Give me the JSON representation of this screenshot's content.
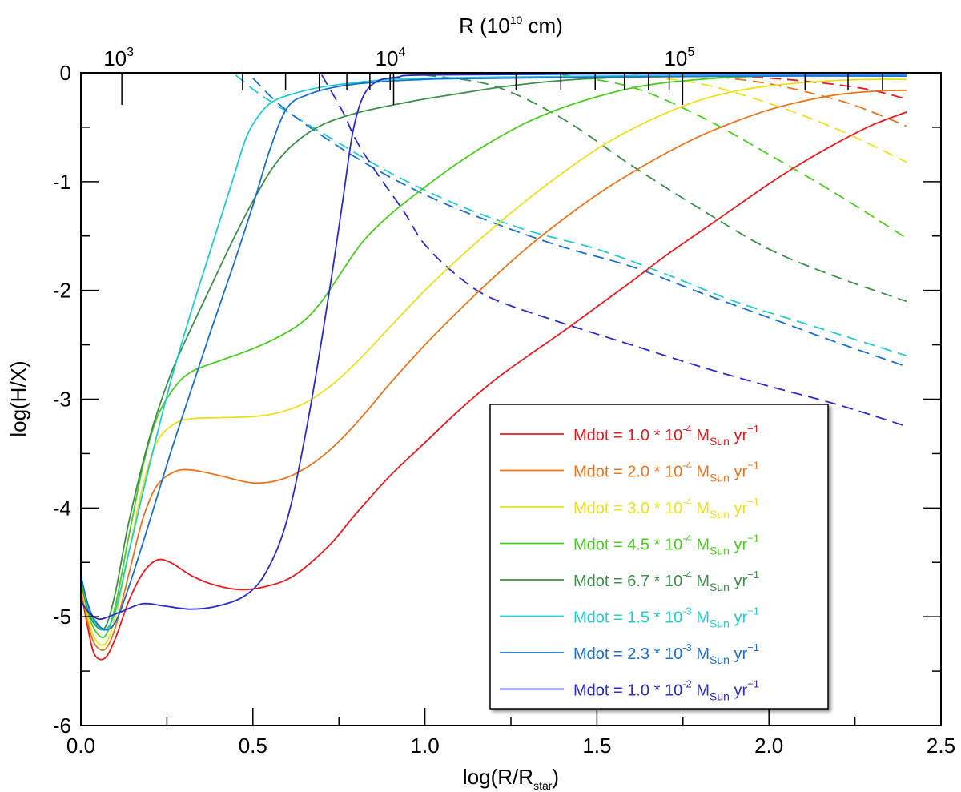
{
  "chart_data": {
    "type": "line",
    "title": "",
    "xlabel": "log(R/R",
    "xlabel_sub": "star",
    "xlabel_close": ")",
    "ylabel": "log(H/X)",
    "top_axis_label": "R (10",
    "top_axis_label_sup": "10",
    "top_axis_label_end": " cm)",
    "xlim": [
      0.0,
      2.5
    ],
    "ylim": [
      -6,
      0
    ],
    "x_ticks": [
      0.0,
      0.5,
      1.0,
      1.5,
      2.0,
      2.5
    ],
    "x_tick_labels": [
      "0.0",
      "0.5",
      "1.0",
      "1.5",
      "2.0",
      "2.5"
    ],
    "y_ticks": [
      0,
      -1,
      -2,
      -3,
      -4,
      -5,
      -6
    ],
    "y_tick_labels": [
      "0",
      "-1",
      "-2",
      "-3",
      "-4",
      "-5",
      "-6"
    ],
    "top_ticks": [
      {
        "base": "10",
        "exp": "3",
        "x": 0.119
      },
      {
        "base": "10",
        "exp": "4",
        "x": 0.909
      },
      {
        "base": "10",
        "exp": "5",
        "x": 1.749
      }
    ],
    "top_minor_x": [
      0.47,
      0.595,
      0.693,
      0.773,
      0.84,
      0.899,
      1.265,
      1.395,
      1.495,
      1.58,
      1.65,
      1.71,
      2.105,
      2.23,
      2.33
    ],
    "legend_position": "bottom-right",
    "series": [
      {
        "name": "Mdot = 1.0 * 10",
        "exp": "-4",
        "unit": "Sun",
        "color": "#e8191f",
        "solid": [
          [
            0.0,
            -4.75
          ],
          [
            0.02,
            -5.1
          ],
          [
            0.04,
            -5.35
          ],
          [
            0.07,
            -5.38
          ],
          [
            0.1,
            -5.2
          ],
          [
            0.14,
            -4.85
          ],
          [
            0.18,
            -4.6
          ],
          [
            0.22,
            -4.48
          ],
          [
            0.26,
            -4.5
          ],
          [
            0.32,
            -4.62
          ],
          [
            0.38,
            -4.7
          ],
          [
            0.46,
            -4.75
          ],
          [
            0.54,
            -4.72
          ],
          [
            0.62,
            -4.62
          ],
          [
            0.72,
            -4.35
          ],
          [
            0.8,
            -4.05
          ],
          [
            0.9,
            -3.7
          ],
          [
            1.0,
            -3.4
          ],
          [
            1.1,
            -3.1
          ],
          [
            1.2,
            -2.83
          ],
          [
            1.3,
            -2.6
          ],
          [
            1.4,
            -2.38
          ],
          [
            1.5,
            -2.15
          ],
          [
            1.6,
            -1.92
          ],
          [
            1.7,
            -1.68
          ],
          [
            1.8,
            -1.46
          ],
          [
            1.9,
            -1.24
          ],
          [
            2.0,
            -1.02
          ],
          [
            2.1,
            -0.82
          ],
          [
            2.2,
            -0.64
          ],
          [
            2.3,
            -0.48
          ],
          [
            2.4,
            -0.36
          ]
        ],
        "dashed": [
          [
            1.9,
            -0.03
          ],
          [
            2.05,
            -0.06
          ],
          [
            2.2,
            -0.11
          ],
          [
            2.3,
            -0.16
          ],
          [
            2.4,
            -0.24
          ]
        ]
      },
      {
        "name": "Mdot = 2.0 * 10",
        "exp": "-4",
        "unit": "Sun",
        "color": "#e8751c",
        "solid": [
          [
            0.0,
            -4.72
          ],
          [
            0.02,
            -5.05
          ],
          [
            0.04,
            -5.25
          ],
          [
            0.07,
            -5.3
          ],
          [
            0.1,
            -5.1
          ],
          [
            0.14,
            -4.6
          ],
          [
            0.18,
            -4.1
          ],
          [
            0.22,
            -3.8
          ],
          [
            0.27,
            -3.67
          ],
          [
            0.32,
            -3.65
          ],
          [
            0.4,
            -3.7
          ],
          [
            0.5,
            -3.77
          ],
          [
            0.58,
            -3.74
          ],
          [
            0.66,
            -3.62
          ],
          [
            0.74,
            -3.42
          ],
          [
            0.82,
            -3.15
          ],
          [
            0.9,
            -2.85
          ],
          [
            1.0,
            -2.5
          ],
          [
            1.1,
            -2.18
          ],
          [
            1.2,
            -1.88
          ],
          [
            1.3,
            -1.6
          ],
          [
            1.4,
            -1.35
          ],
          [
            1.5,
            -1.12
          ],
          [
            1.6,
            -0.92
          ],
          [
            1.7,
            -0.74
          ],
          [
            1.8,
            -0.58
          ],
          [
            1.9,
            -0.45
          ],
          [
            2.0,
            -0.34
          ],
          [
            2.1,
            -0.26
          ],
          [
            2.2,
            -0.2
          ],
          [
            2.3,
            -0.17
          ],
          [
            2.4,
            -0.16
          ]
        ],
        "dashed": [
          [
            1.8,
            -0.02
          ],
          [
            2.0,
            -0.1
          ],
          [
            2.2,
            -0.25
          ],
          [
            2.3,
            -0.36
          ],
          [
            2.4,
            -0.49
          ]
        ]
      },
      {
        "name": "Mdot = 3.0 * 10",
        "exp": "-4",
        "unit": "Sun",
        "color": "#ece01e",
        "solid": [
          [
            0.0,
            -4.7
          ],
          [
            0.02,
            -5.0
          ],
          [
            0.04,
            -5.2
          ],
          [
            0.07,
            -5.25
          ],
          [
            0.1,
            -5.0
          ],
          [
            0.14,
            -4.4
          ],
          [
            0.18,
            -3.8
          ],
          [
            0.22,
            -3.4
          ],
          [
            0.27,
            -3.23
          ],
          [
            0.32,
            -3.18
          ],
          [
            0.4,
            -3.17
          ],
          [
            0.5,
            -3.16
          ],
          [
            0.58,
            -3.12
          ],
          [
            0.66,
            -3.02
          ],
          [
            0.74,
            -2.84
          ],
          [
            0.82,
            -2.6
          ],
          [
            0.9,
            -2.33
          ],
          [
            1.0,
            -2.0
          ],
          [
            1.1,
            -1.7
          ],
          [
            1.2,
            -1.42
          ],
          [
            1.3,
            -1.16
          ],
          [
            1.4,
            -0.92
          ],
          [
            1.5,
            -0.7
          ],
          [
            1.6,
            -0.52
          ],
          [
            1.7,
            -0.37
          ],
          [
            1.8,
            -0.25
          ],
          [
            1.9,
            -0.17
          ],
          [
            2.0,
            -0.12
          ],
          [
            2.1,
            -0.09
          ],
          [
            2.2,
            -0.07
          ],
          [
            2.3,
            -0.06
          ],
          [
            2.4,
            -0.06
          ]
        ],
        "dashed": [
          [
            1.6,
            -0.02
          ],
          [
            1.8,
            -0.1
          ],
          [
            2.0,
            -0.28
          ],
          [
            2.2,
            -0.52
          ],
          [
            2.4,
            -0.82
          ]
        ]
      },
      {
        "name": "Mdot = 4.5 * 10",
        "exp": "-4",
        "unit": "Sun",
        "color": "#4ccc1f",
        "solid": [
          [
            0.0,
            -4.68
          ],
          [
            0.02,
            -4.95
          ],
          [
            0.04,
            -5.12
          ],
          [
            0.07,
            -5.18
          ],
          [
            0.1,
            -4.9
          ],
          [
            0.14,
            -4.25
          ],
          [
            0.18,
            -3.62
          ],
          [
            0.22,
            -3.18
          ],
          [
            0.27,
            -2.9
          ],
          [
            0.32,
            -2.75
          ],
          [
            0.4,
            -2.65
          ],
          [
            0.48,
            -2.56
          ],
          [
            0.56,
            -2.45
          ],
          [
            0.64,
            -2.3
          ],
          [
            0.7,
            -2.1
          ],
          [
            0.76,
            -1.82
          ],
          [
            0.82,
            -1.55
          ],
          [
            0.9,
            -1.3
          ],
          [
            1.0,
            -1.05
          ],
          [
            1.1,
            -0.82
          ],
          [
            1.2,
            -0.62
          ],
          [
            1.3,
            -0.45
          ],
          [
            1.4,
            -0.32
          ],
          [
            1.5,
            -0.22
          ],
          [
            1.6,
            -0.14
          ],
          [
            1.7,
            -0.09
          ],
          [
            1.8,
            -0.06
          ],
          [
            1.9,
            -0.04
          ],
          [
            2.0,
            -0.03
          ],
          [
            2.2,
            -0.02
          ],
          [
            2.4,
            -0.02
          ]
        ],
        "dashed": [
          [
            1.4,
            -0.02
          ],
          [
            1.6,
            -0.13
          ],
          [
            1.8,
            -0.4
          ],
          [
            2.0,
            -0.75
          ],
          [
            2.2,
            -1.12
          ],
          [
            2.4,
            -1.52
          ]
        ]
      },
      {
        "name": "Mdot = 6.7 * 10",
        "exp": "-4",
        "unit": "Sun",
        "color": "#3f8e4c",
        "solid": [
          [
            0.0,
            -4.66
          ],
          [
            0.02,
            -4.92
          ],
          [
            0.04,
            -5.07
          ],
          [
            0.07,
            -5.1
          ],
          [
            0.1,
            -4.78
          ],
          [
            0.14,
            -4.12
          ],
          [
            0.2,
            -3.35
          ],
          [
            0.26,
            -2.78
          ],
          [
            0.32,
            -2.35
          ],
          [
            0.38,
            -1.95
          ],
          [
            0.44,
            -1.55
          ],
          [
            0.5,
            -1.18
          ],
          [
            0.56,
            -0.86
          ],
          [
            0.62,
            -0.65
          ],
          [
            0.7,
            -0.48
          ],
          [
            0.8,
            -0.37
          ],
          [
            0.9,
            -0.3
          ],
          [
            1.0,
            -0.24
          ],
          [
            1.1,
            -0.19
          ],
          [
            1.2,
            -0.14
          ],
          [
            1.3,
            -0.1
          ],
          [
            1.4,
            -0.07
          ],
          [
            1.5,
            -0.05
          ],
          [
            1.7,
            -0.03
          ],
          [
            2.0,
            -0.02
          ],
          [
            2.4,
            -0.02
          ]
        ],
        "dashed": [
          [
            1.0,
            -0.02
          ],
          [
            1.2,
            -0.12
          ],
          [
            1.4,
            -0.42
          ],
          [
            1.6,
            -0.85
          ],
          [
            1.8,
            -1.25
          ],
          [
            2.0,
            -1.62
          ],
          [
            2.2,
            -1.88
          ],
          [
            2.4,
            -2.1
          ]
        ]
      },
      {
        "name": "Mdot = 1.5 * 10",
        "exp": "-3",
        "unit": "Sun",
        "color": "#22cccc",
        "solid": [
          [
            0.0,
            -4.64
          ],
          [
            0.02,
            -4.9
          ],
          [
            0.04,
            -5.05
          ],
          [
            0.07,
            -5.12
          ],
          [
            0.1,
            -4.95
          ],
          [
            0.14,
            -4.4
          ],
          [
            0.2,
            -3.6
          ],
          [
            0.26,
            -2.85
          ],
          [
            0.32,
            -2.2
          ],
          [
            0.38,
            -1.6
          ],
          [
            0.44,
            -1.0
          ],
          [
            0.48,
            -0.6
          ],
          [
            0.52,
            -0.38
          ],
          [
            0.56,
            -0.26
          ],
          [
            0.62,
            -0.19
          ],
          [
            0.7,
            -0.13
          ],
          [
            0.8,
            -0.09
          ],
          [
            0.9,
            -0.06
          ],
          [
            1.0,
            -0.05
          ],
          [
            1.2,
            -0.04
          ],
          [
            1.5,
            -0.03
          ],
          [
            2.0,
            -0.02
          ],
          [
            2.4,
            -0.02
          ]
        ],
        "dashed": [
          [
            0.45,
            -0.02
          ],
          [
            0.5,
            -0.15
          ],
          [
            0.56,
            -0.28
          ],
          [
            0.7,
            -0.55
          ],
          [
            0.9,
            -0.92
          ],
          [
            1.1,
            -1.22
          ],
          [
            1.3,
            -1.45
          ],
          [
            1.5,
            -1.62
          ],
          [
            1.7,
            -1.85
          ],
          [
            1.9,
            -2.1
          ],
          [
            2.1,
            -2.3
          ],
          [
            2.4,
            -2.6
          ]
        ]
      },
      {
        "name": "Mdot = 2.3 * 10",
        "exp": "-3",
        "unit": "Sun",
        "color": "#1a6fd1",
        "solid": [
          [
            0.0,
            -4.62
          ],
          [
            0.02,
            -4.88
          ],
          [
            0.04,
            -5.03
          ],
          [
            0.07,
            -5.12
          ],
          [
            0.1,
            -5.05
          ],
          [
            0.14,
            -4.72
          ],
          [
            0.2,
            -4.12
          ],
          [
            0.26,
            -3.5
          ],
          [
            0.32,
            -2.92
          ],
          [
            0.38,
            -2.35
          ],
          [
            0.44,
            -1.8
          ],
          [
            0.5,
            -1.22
          ],
          [
            0.55,
            -0.7
          ],
          [
            0.6,
            -0.32
          ],
          [
            0.66,
            -0.2
          ],
          [
            0.74,
            -0.13
          ],
          [
            0.84,
            -0.09
          ],
          [
            1.0,
            -0.06
          ],
          [
            1.2,
            -0.05
          ],
          [
            1.5,
            -0.04
          ],
          [
            2.0,
            -0.03
          ],
          [
            2.4,
            -0.03
          ]
        ],
        "dashed": [
          [
            0.5,
            -0.05
          ],
          [
            0.6,
            -0.35
          ],
          [
            0.8,
            -0.78
          ],
          [
            1.0,
            -1.12
          ],
          [
            1.2,
            -1.38
          ],
          [
            1.4,
            -1.6
          ],
          [
            1.6,
            -1.78
          ],
          [
            1.8,
            -2.02
          ],
          [
            2.0,
            -2.25
          ],
          [
            2.2,
            -2.48
          ],
          [
            2.4,
            -2.7
          ]
        ]
      },
      {
        "name": "Mdot = 1.0 * 10",
        "exp": "-2",
        "unit": "Sun",
        "color": "#2b2bc8",
        "solid": [
          [
            0.0,
            -4.85
          ],
          [
            0.02,
            -4.95
          ],
          [
            0.05,
            -5.02
          ],
          [
            0.08,
            -5.0
          ],
          [
            0.12,
            -4.95
          ],
          [
            0.18,
            -4.88
          ],
          [
            0.24,
            -4.9
          ],
          [
            0.32,
            -4.93
          ],
          [
            0.4,
            -4.9
          ],
          [
            0.48,
            -4.8
          ],
          [
            0.54,
            -4.58
          ],
          [
            0.6,
            -4.1
          ],
          [
            0.66,
            -3.2
          ],
          [
            0.72,
            -2.05
          ],
          [
            0.76,
            -1.2
          ],
          [
            0.79,
            -0.55
          ],
          [
            0.82,
            -0.22
          ],
          [
            0.86,
            -0.08
          ],
          [
            0.92,
            -0.04
          ],
          [
            1.0,
            -0.02
          ],
          [
            1.5,
            -0.01
          ],
          [
            2.4,
            -0.01
          ]
        ],
        "dashed": [
          [
            0.7,
            -0.02
          ],
          [
            0.76,
            -0.35
          ],
          [
            0.8,
            -0.62
          ],
          [
            0.86,
            -0.92
          ],
          [
            0.94,
            -1.28
          ],
          [
            1.0,
            -1.58
          ],
          [
            1.1,
            -1.88
          ],
          [
            1.2,
            -2.08
          ],
          [
            1.4,
            -2.3
          ],
          [
            1.6,
            -2.5
          ],
          [
            1.8,
            -2.7
          ],
          [
            2.0,
            -2.88
          ],
          [
            2.2,
            -3.05
          ],
          [
            2.4,
            -3.25
          ]
        ]
      }
    ]
  }
}
